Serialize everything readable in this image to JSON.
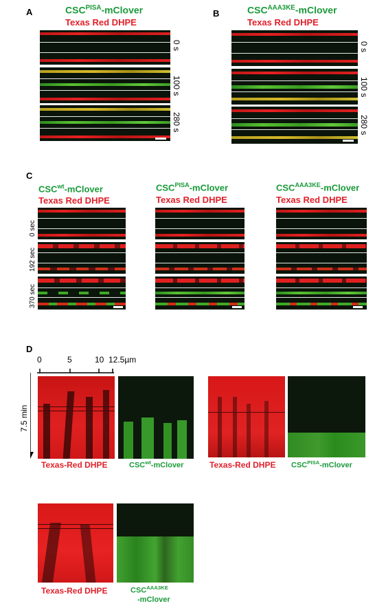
{
  "panel_a": {
    "letter": "A",
    "title_protein": "CSC",
    "title_sup": "PISA",
    "title_suffix": "-mClover",
    "title_dye": "Texas Red DHPE",
    "times": [
      "0 s",
      "100 s",
      "280 s"
    ]
  },
  "panel_b": {
    "letter": "B",
    "title_protein": "CSC",
    "title_sup": "AAA3KE",
    "title_suffix": "-mClover",
    "title_dye": "Texas Red DHPE",
    "times": [
      "0 s",
      "100 s",
      "280 s"
    ]
  },
  "panel_c": {
    "letter": "C",
    "times": [
      "0 sec",
      "192 sec",
      "370 sec"
    ],
    "columns": [
      {
        "protein": "CSC",
        "sup": "wt",
        "suffix": "-mClover",
        "dye": "Texas Red DHPE"
      },
      {
        "protein": "CSC",
        "sup": "PISA",
        "suffix": "-mClover",
        "dye": "Texas Red DHPE"
      },
      {
        "protein": "CSC",
        "sup": "AAA3KE",
        "suffix": "-mClover",
        "dye": "Texas Red DHPE"
      }
    ]
  },
  "panel_d": {
    "letter": "D",
    "axis_ticks": [
      "0",
      "5",
      "10",
      "12.5µm"
    ],
    "time_axis": "7.5 min",
    "captions": {
      "red": "Texas-Red DHPE",
      "wt_protein": "CSC",
      "wt_sup": "wt",
      "wt_suffix": "-mClover",
      "pisa_protein": "CSC",
      "pisa_sup": "PISA",
      "pisa_suffix": "-mClover",
      "aaa_protein": "CSC",
      "aaa_sup": "AAA3KE",
      "aaa_suffix": "-mClover"
    }
  },
  "colors": {
    "green_text": "#1a9a3a",
    "red_text": "#e0202a"
  }
}
